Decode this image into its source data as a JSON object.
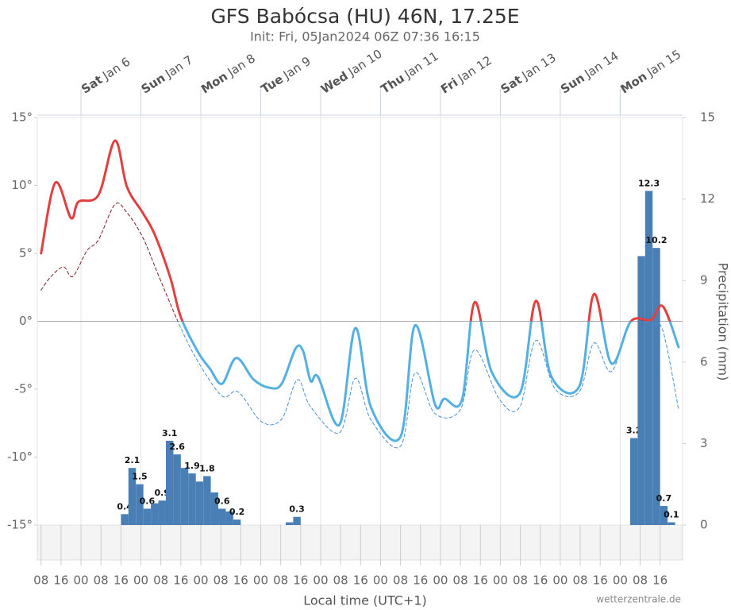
{
  "chart_data": {
    "type": "line",
    "title": "GFS Babócsa (HU) 46N, 17.25E",
    "subtitle": "Init: Fri, 05Jan2024 06Z 07:36 16:15",
    "xlabel": "Local time (UTC+1)",
    "y2label": "Precipitation (mm)",
    "credit": "wetterzentrale.de",
    "xlim": [
      6.5,
      265
    ],
    "xticks": [
      {
        "value": 8,
        "label": "08"
      },
      {
        "value": 16,
        "label": "16"
      },
      {
        "value": 24,
        "label": "00"
      },
      {
        "value": 32,
        "label": "08"
      },
      {
        "value": 40,
        "label": "16"
      },
      {
        "value": 48,
        "label": "00"
      },
      {
        "value": 56,
        "label": "08"
      },
      {
        "value": 64,
        "label": "16"
      },
      {
        "value": 72,
        "label": "00"
      },
      {
        "value": 80,
        "label": "08"
      },
      {
        "value": 88,
        "label": "16"
      },
      {
        "value": 96,
        "label": "00"
      },
      {
        "value": 104,
        "label": "08"
      },
      {
        "value": 112,
        "label": "16"
      },
      {
        "value": 120,
        "label": "00"
      },
      {
        "value": 128,
        "label": "08"
      },
      {
        "value": 136,
        "label": "16"
      },
      {
        "value": 144,
        "label": "00"
      },
      {
        "value": 152,
        "label": "08"
      },
      {
        "value": 160,
        "label": "16"
      },
      {
        "value": 168,
        "label": "00"
      },
      {
        "value": 176,
        "label": "08"
      },
      {
        "value": 184,
        "label": "16"
      },
      {
        "value": 192,
        "label": "00"
      },
      {
        "value": 200,
        "label": "08"
      },
      {
        "value": 208,
        "label": "16"
      },
      {
        "value": 216,
        "label": "00"
      },
      {
        "value": 224,
        "label": "08"
      },
      {
        "value": 232,
        "label": "16"
      },
      {
        "value": 240,
        "label": "00"
      },
      {
        "value": 248,
        "label": "08"
      },
      {
        "value": 256,
        "label": "16"
      }
    ],
    "day_ticks": [
      {
        "value": 24,
        "day": "Sat",
        "date": "Jan 6"
      },
      {
        "value": 48,
        "day": "Sun",
        "date": "Jan 7"
      },
      {
        "value": 72,
        "day": "Mon",
        "date": "Jan 8"
      },
      {
        "value": 96,
        "day": "Tue",
        "date": "Jan 9"
      },
      {
        "value": 120,
        "day": "Wed",
        "date": "Jan 10"
      },
      {
        "value": 144,
        "day": "Thu",
        "date": "Jan 11"
      },
      {
        "value": 168,
        "day": "Fri",
        "date": "Jan 12"
      },
      {
        "value": 192,
        "day": "Sat",
        "date": "Jan 13"
      },
      {
        "value": 216,
        "day": "Sun",
        "date": "Jan 14"
      },
      {
        "value": 240,
        "day": "Mon",
        "date": "Jan 15"
      }
    ],
    "ylim": [
      -15,
      15
    ],
    "yticks": [
      {
        "value": -15,
        "label": "-15°"
      },
      {
        "value": -10,
        "label": "-10°"
      },
      {
        "value": -5,
        "label": "-5°"
      },
      {
        "value": 0,
        "label": "0°"
      },
      {
        "value": 5,
        "label": "5°"
      },
      {
        "value": 10,
        "label": "10°"
      },
      {
        "value": 15,
        "label": "15°"
      }
    ],
    "y2lim": [
      0,
      15
    ],
    "y2ticks": [
      0,
      3,
      6,
      9,
      12,
      15
    ],
    "series": [
      {
        "type": "bar",
        "axis": "y2",
        "color": "#4a7fb5",
        "bar_width": 3,
        "x": [
          40,
          43,
          46,
          49,
          52,
          55,
          58,
          61,
          64,
          67,
          70,
          73,
          76,
          79,
          82,
          85,
          106,
          109,
          244,
          247,
          250,
          253,
          256,
          259
        ],
        "values": [
          0.4,
          2.1,
          1.5,
          0.6,
          0.8,
          0.9,
          3.1,
          2.6,
          2.1,
          1.9,
          1.6,
          1.8,
          1.2,
          0.6,
          0.5,
          0.2,
          0.1,
          0.3,
          3.2,
          9.9,
          12.3,
          10.2,
          0.7,
          0.1
        ],
        "value_labels": [
          "0.4",
          "2.1",
          "1.5",
          "0.6",
          null,
          "0.9",
          "3.1",
          "2.6",
          null,
          "1.9",
          null,
          "1.8",
          null,
          "0.6",
          null,
          "0.2",
          null,
          "0.3",
          "3.2",
          null,
          "12.3",
          "10.2",
          "0.7",
          "0.1"
        ]
      },
      {
        "type": "line",
        "dashed": true,
        "width": 1,
        "color_above": "#7a1f1f",
        "color_below": "#4a90d0",
        "x": [
          8,
          12,
          17,
          20.7,
          26.4,
          31,
          37.6,
          42.4,
          48.7,
          55,
          64,
          71,
          80.5,
          87,
          96.4,
          104.4,
          110.7,
          116,
          127.6,
          133.9,
          140.3,
          152,
          157.8,
          165.8,
          176,
          181.7,
          191.8,
          199.8,
          206.2,
          214,
          223.6,
          229.5,
          236.5,
          244.3,
          252.3,
          257.1,
          263.4
        ],
        "values": [
          2.3,
          3.3,
          4.0,
          3.3,
          5.2,
          6.0,
          8.6,
          8.0,
          6.2,
          3.4,
          -0.5,
          -3.0,
          -5.5,
          -5.2,
          -7.4,
          -7.2,
          -4.3,
          -6.3,
          -8.2,
          -4.2,
          -7.3,
          -9.2,
          -3.8,
          -6.8,
          -6.5,
          -2.1,
          -5.8,
          -6.3,
          -1.4,
          -5.0,
          -5.2,
          -1.6,
          -3.7,
          0,
          -0.3,
          -0.7,
          -6.5
        ]
      },
      {
        "type": "line",
        "dashed": false,
        "width": 3,
        "color_above": "#e04040",
        "color_below": "#55b0e0",
        "x": [
          8,
          13.7,
          20,
          23,
          31,
          37.6,
          42.4,
          48.7,
          53.5,
          59.8,
          64,
          71,
          75.7,
          80.5,
          86.2,
          93.2,
          99.6,
          104.4,
          110,
          113,
          116,
          119,
          127.6,
          133.9,
          140.3,
          152,
          157.8,
          165.8,
          169.6,
          176.6,
          181.7,
          188.7,
          199.8,
          206.2,
          212.5,
          223.6,
          229.5,
          236.5,
          244.3,
          252.3,
          257.1,
          263.4
        ],
        "values": [
          5.0,
          10.2,
          7.6,
          8.8,
          9.3,
          13.3,
          9.9,
          8.0,
          6.4,
          3.2,
          0.3,
          -2.3,
          -3.5,
          -4.6,
          -2.7,
          -4.3,
          -4.9,
          -4.6,
          -2.0,
          -2.2,
          -4.4,
          -4.1,
          -7.6,
          -0.5,
          -6.4,
          -8.5,
          -0.3,
          -6.1,
          -5.7,
          -5.8,
          1.4,
          -3.8,
          -5.3,
          1.5,
          -4.1,
          -4.8,
          2.0,
          -3.1,
          0,
          0.1,
          1.1,
          -1.9
        ]
      }
    ]
  }
}
